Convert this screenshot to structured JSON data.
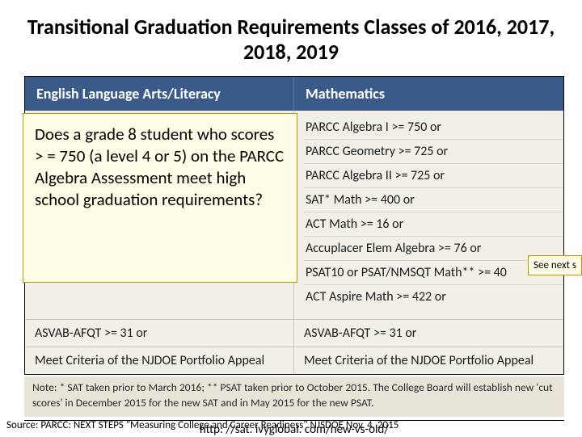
{
  "title": "Transitional  Graduation Requirements Classes of 2016, 2017, 2018, 2019",
  "headers": {
    "left": "English Language Arts/Literacy",
    "right": "Mathematics"
  },
  "overlay_question": "Does a grade 8 student who scores > = 750 (a level 4 or 5) on the PARCC Algebra Assessment meet high school graduation requirements?",
  "math_rows": [
    "PARCC Algebra I >= 750 or",
    "PARCC Geometry >= 725 or",
    "PARCC Algebra II >= 725 or",
    "SAT* Math >= 400 or",
    "ACT Math >= 16 or",
    "Accuplacer Elem Algebra >= 76 or",
    "PSAT10 or PSAT/NMSQT Math** >= 40",
    "ACT Aspire Math >= 422 or"
  ],
  "bottom_rows": [
    {
      "left": "ASVAB-AFQT >= 31 or",
      "right": "ASVAB-AFQT >= 31 or"
    },
    {
      "left": "Meet Criteria of the NJDOE Portfolio Appeal",
      "right": "Meet Criteria of the NJDOE Portfolio Appeal"
    }
  ],
  "note": "Note: * SAT taken prior to March 2016; ** PSAT taken prior to October 2015. The College Board will establish new 'cut scores' in December 2015 for the new SAT and in May 2015 for the new PSAT.",
  "url": "http: //sat. ivyglobal. com/new-vs-old/",
  "source": "Source: PARCC: NEXT STEPS \"Measuring College and  Career Readiness\" NJSDOE Nov. 4, 2015",
  "hint": "See next s",
  "colors": {
    "header_bg": "#3a5a8a",
    "overlay_bg": "#fffde7",
    "overlay_border": "#b89a00",
    "table_bg": "#f2efe8",
    "note_bg": "#e8e4d8"
  }
}
